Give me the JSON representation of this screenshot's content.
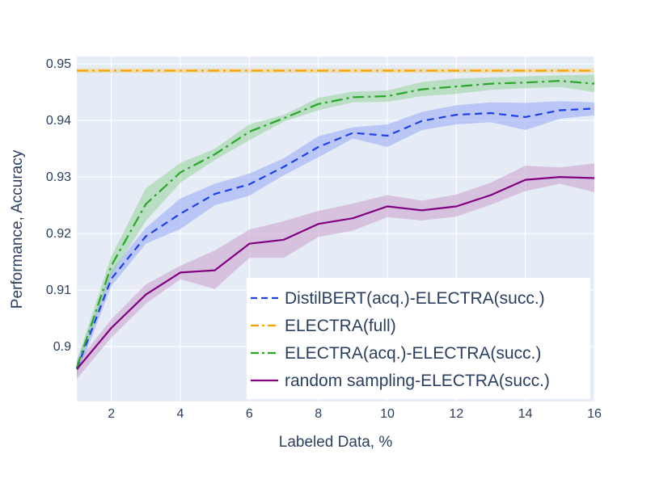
{
  "chart_data": {
    "type": "line",
    "xlabel": "Labeled Data, %",
    "ylabel": "Performance, Accuracy",
    "xlim": [
      1,
      16
    ],
    "ylim": [
      0.8903,
      0.9513
    ],
    "x_ticks": [
      2,
      4,
      6,
      8,
      10,
      12,
      14,
      16
    ],
    "x_tick_labels": [
      "2",
      "4",
      "6",
      "8",
      "10",
      "12",
      "14",
      "16"
    ],
    "y_ticks": [
      0.9,
      0.91,
      0.92,
      0.93,
      0.94,
      0.95
    ],
    "y_tick_labels": [
      "0.9",
      "0.91",
      "0.92",
      "0.93",
      "0.94",
      "0.95"
    ],
    "grid": true,
    "legend_position": "bottom-right",
    "x": [
      1,
      2,
      3,
      4,
      5,
      6,
      7,
      8,
      9,
      10,
      11,
      12,
      13,
      14,
      15,
      16
    ],
    "series": [
      {
        "name": "DistilBERT(acq.)-ELECTRA(succ.)",
        "color": "#1f3fe8",
        "band_color": "#8fa0f5",
        "dash": "dash",
        "values": [
          0.8961,
          0.912,
          0.9195,
          0.9235,
          0.927,
          0.9287,
          0.9318,
          0.9353,
          0.9378,
          0.9373,
          0.9399,
          0.941,
          0.9413,
          0.9406,
          0.9418,
          0.9421
        ],
        "upper": [
          0.8975,
          0.9135,
          0.921,
          0.9262,
          0.9288,
          0.9306,
          0.9333,
          0.9372,
          0.9388,
          0.9393,
          0.9415,
          0.9427,
          0.9432,
          0.9431,
          0.9434,
          0.9432
        ],
        "lower": [
          0.8948,
          0.9107,
          0.9182,
          0.9208,
          0.925,
          0.9267,
          0.9303,
          0.9335,
          0.9368,
          0.9353,
          0.9383,
          0.9393,
          0.9397,
          0.9383,
          0.9403,
          0.9409
        ]
      },
      {
        "name": "ELECTRA(full)",
        "color": "#f5a300",
        "band_color": "#f7cf7a",
        "dash": "dashdot",
        "values": [
          0.9488,
          0.9488,
          0.9488,
          0.9488,
          0.9488,
          0.9488,
          0.9488,
          0.9488,
          0.9488,
          0.9488,
          0.9488,
          0.9488,
          0.9488,
          0.9488,
          0.9488,
          0.9488
        ],
        "upper": [
          0.9492,
          0.9492,
          0.9492,
          0.9492,
          0.9492,
          0.9492,
          0.9492,
          0.9492,
          0.9492,
          0.9492,
          0.9492,
          0.9492,
          0.9492,
          0.9492,
          0.9492,
          0.9492
        ],
        "lower": [
          0.9484,
          0.9484,
          0.9484,
          0.9484,
          0.9484,
          0.9484,
          0.9484,
          0.9484,
          0.9484,
          0.9484,
          0.9484,
          0.9484,
          0.9484,
          0.9484,
          0.9484,
          0.9484
        ]
      },
      {
        "name": "ELECTRA(acq.)-ELECTRA(succ.)",
        "color": "#2aa72a",
        "band_color": "#90d090",
        "dash": "dashdot",
        "values": [
          0.8963,
          0.9143,
          0.9252,
          0.9308,
          0.934,
          0.938,
          0.9404,
          0.9429,
          0.9441,
          0.9443,
          0.9455,
          0.946,
          0.9465,
          0.9467,
          0.947,
          0.9465
        ],
        "upper": [
          0.8975,
          0.916,
          0.928,
          0.9325,
          0.935,
          0.9393,
          0.941,
          0.944,
          0.9451,
          0.9453,
          0.9468,
          0.9474,
          0.9476,
          0.9478,
          0.948,
          0.9481
        ],
        "lower": [
          0.8952,
          0.9127,
          0.9222,
          0.929,
          0.933,
          0.9365,
          0.9398,
          0.9418,
          0.9432,
          0.9433,
          0.9443,
          0.9447,
          0.9454,
          0.9457,
          0.9459,
          0.945
        ]
      },
      {
        "name": "random sampling-ELECTRA(succ.)",
        "color": "#800080",
        "band_color": "#c896c8",
        "dash": "solid",
        "values": [
          0.896,
          0.9033,
          0.9092,
          0.9131,
          0.9135,
          0.9182,
          0.9189,
          0.9217,
          0.9227,
          0.9248,
          0.9241,
          0.9248,
          0.9268,
          0.9295,
          0.93,
          0.9298
        ],
        "upper": [
          0.8972,
          0.9048,
          0.911,
          0.9143,
          0.917,
          0.9207,
          0.9222,
          0.924,
          0.9253,
          0.9268,
          0.9258,
          0.9269,
          0.929,
          0.932,
          0.9317,
          0.9324
        ],
        "lower": [
          0.8943,
          0.9016,
          0.9076,
          0.9119,
          0.9102,
          0.9157,
          0.9157,
          0.9194,
          0.9205,
          0.9229,
          0.9223,
          0.923,
          0.9251,
          0.9275,
          0.9288,
          0.9273
        ]
      }
    ]
  }
}
